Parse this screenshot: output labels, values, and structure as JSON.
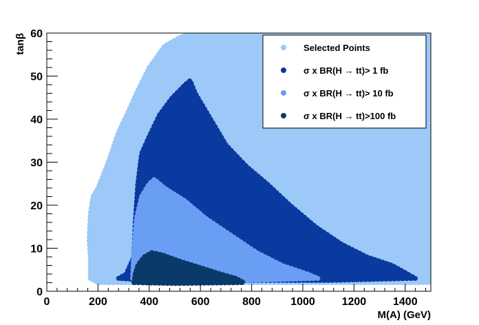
{
  "chart_data": {
    "type": "scatter",
    "title": "",
    "xlabel": "M(A) (GeV)",
    "ylabel": "tanβ",
    "xlim": [
      0,
      1500
    ],
    "ylim": [
      0,
      60
    ],
    "xticks": [
      "0",
      "200",
      "400",
      "600",
      "800",
      "1000",
      "1200",
      "1400"
    ],
    "yticks": [
      "0",
      "10",
      "20",
      "30",
      "40",
      "50",
      "60"
    ],
    "legend_position": "top-right",
    "grid": false,
    "colors": {
      "selected": "#9cc9f7",
      "gt1": "#0a3aa0",
      "gt10": "#6a9ef5",
      "gt100": "#0a3a6a"
    },
    "series": [
      {
        "name": "Selected Points",
        "color": "#9cc9f7",
        "region": [
          [
            170,
            3
          ],
          [
            170,
            8
          ],
          [
            165,
            12
          ],
          [
            170,
            18
          ],
          [
            180,
            22
          ],
          [
            200,
            24
          ],
          [
            240,
            30
          ],
          [
            280,
            37
          ],
          [
            320,
            42
          ],
          [
            350,
            46
          ],
          [
            400,
            52
          ],
          [
            460,
            57
          ],
          [
            520,
            59
          ],
          [
            560,
            60
          ],
          [
            1500,
            60
          ],
          [
            1500,
            2
          ],
          [
            900,
            2
          ],
          [
            300,
            2
          ],
          [
            200,
            2
          ]
        ]
      },
      {
        "name": "σ x BR(H → tt)>  1 fb",
        "color": "#0a3aa0",
        "region": [
          [
            280,
            3
          ],
          [
            310,
            4
          ],
          [
            340,
            8
          ],
          [
            345,
            16
          ],
          [
            355,
            25
          ],
          [
            370,
            32
          ],
          [
            400,
            36
          ],
          [
            440,
            41
          ],
          [
            490,
            45
          ],
          [
            540,
            48
          ],
          [
            560,
            49
          ],
          [
            580,
            46
          ],
          [
            640,
            40
          ],
          [
            700,
            34
          ],
          [
            780,
            29
          ],
          [
            860,
            25
          ],
          [
            950,
            20
          ],
          [
            1050,
            15
          ],
          [
            1150,
            11
          ],
          [
            1250,
            8
          ],
          [
            1350,
            6
          ],
          [
            1440,
            3
          ],
          [
            1100,
            2.5
          ],
          [
            700,
            2.5
          ],
          [
            400,
            2.5
          ]
        ]
      },
      {
        "name": "σ x BR(H → tt)> 10 fb",
        "color": "#6a9ef5",
        "region": [
          [
            335,
            3
          ],
          [
            340,
            10
          ],
          [
            350,
            17
          ],
          [
            370,
            22
          ],
          [
            400,
            25
          ],
          [
            420,
            26
          ],
          [
            460,
            24
          ],
          [
            540,
            21
          ],
          [
            620,
            17
          ],
          [
            720,
            13
          ],
          [
            820,
            9
          ],
          [
            920,
            6
          ],
          [
            1020,
            4
          ],
          [
            1060,
            3
          ],
          [
            800,
            2.5
          ],
          [
            500,
            2.5
          ]
        ]
      },
      {
        "name": "σ x BR(H → tt)>100 fb",
        "color": "#0a3a6a",
        "region": [
          [
            340,
            2
          ],
          [
            345,
            4
          ],
          [
            355,
            6
          ],
          [
            380,
            8
          ],
          [
            410,
            9
          ],
          [
            450,
            8.5
          ],
          [
            520,
            7
          ],
          [
            600,
            5.5
          ],
          [
            680,
            4
          ],
          [
            740,
            3
          ],
          [
            770,
            2
          ],
          [
            500,
            1.8
          ]
        ]
      }
    ]
  }
}
